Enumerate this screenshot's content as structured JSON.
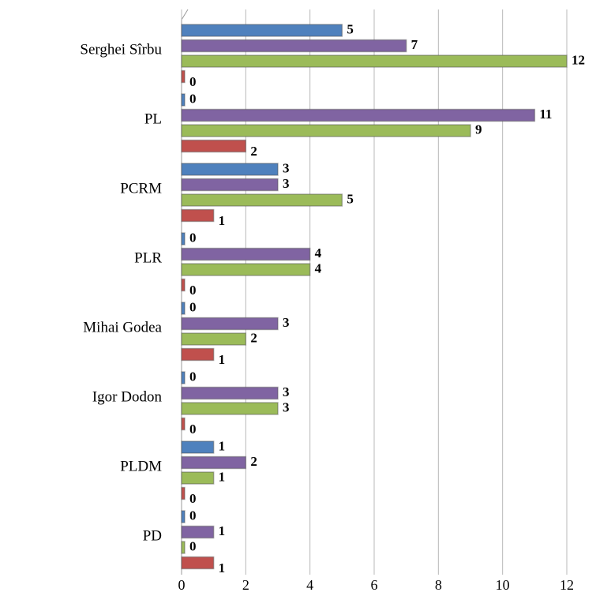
{
  "chart_data": {
    "type": "hbar",
    "categories": [
      "Serghei Sîrbu",
      "PL",
      "PCRM",
      "PLR",
      "Mihai Godea",
      "Igor Dodon",
      "PLDM",
      "PD"
    ],
    "series": [
      {
        "color": "#4f81bd",
        "values": [
          5,
          0,
          3,
          0,
          0,
          0,
          1,
          0
        ]
      },
      {
        "color": "#8064a2",
        "values": [
          7,
          11,
          3,
          4,
          3,
          3,
          2,
          1
        ]
      },
      {
        "color": "#9bbb59",
        "values": [
          12,
          9,
          5,
          4,
          2,
          3,
          1,
          0
        ]
      },
      {
        "color": "#c0504d",
        "values": [
          0,
          2,
          1,
          0,
          1,
          0,
          0,
          1
        ]
      }
    ],
    "xlim": [
      0,
      12
    ],
    "xticks": [
      0,
      2,
      4,
      6,
      8,
      10,
      12
    ],
    "grid": true
  }
}
